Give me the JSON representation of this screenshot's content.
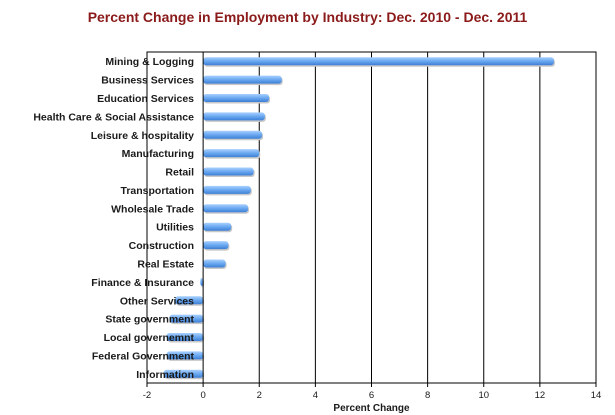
{
  "chart_data": {
    "type": "bar",
    "orientation": "horizontal",
    "title": "Percent Change in Employment by Industry: Dec. 2010 - Dec. 2011",
    "xlabel": "Percent Change",
    "ylabel": "",
    "xlim": [
      -2,
      14
    ],
    "xticks": [
      "-2",
      "0",
      "2",
      "4",
      "6",
      "8",
      "10",
      "12",
      "14"
    ],
    "grid": "vertical",
    "legend": "none",
    "bar_color": "#6aa8f0",
    "categories": [
      "Mining & Logging",
      "Business Services",
      "Education Services",
      "Health Care & Social Assistance",
      "Leisure & hospitality",
      "Manufacturing",
      "Retail",
      "Transportation",
      "Wholesale Trade",
      "Utilities",
      "Construction",
      "Real Estate",
      "Finance & Insurance",
      "Other Services",
      "State government",
      "Local governemnt",
      "Federal Government",
      "Information"
    ],
    "values": [
      12.5,
      2.8,
      2.35,
      2.2,
      2.1,
      2.0,
      1.8,
      1.7,
      1.6,
      1.0,
      0.9,
      0.8,
      -0.1,
      -1.0,
      -1.2,
      -1.3,
      -1.3,
      -1.4
    ]
  }
}
